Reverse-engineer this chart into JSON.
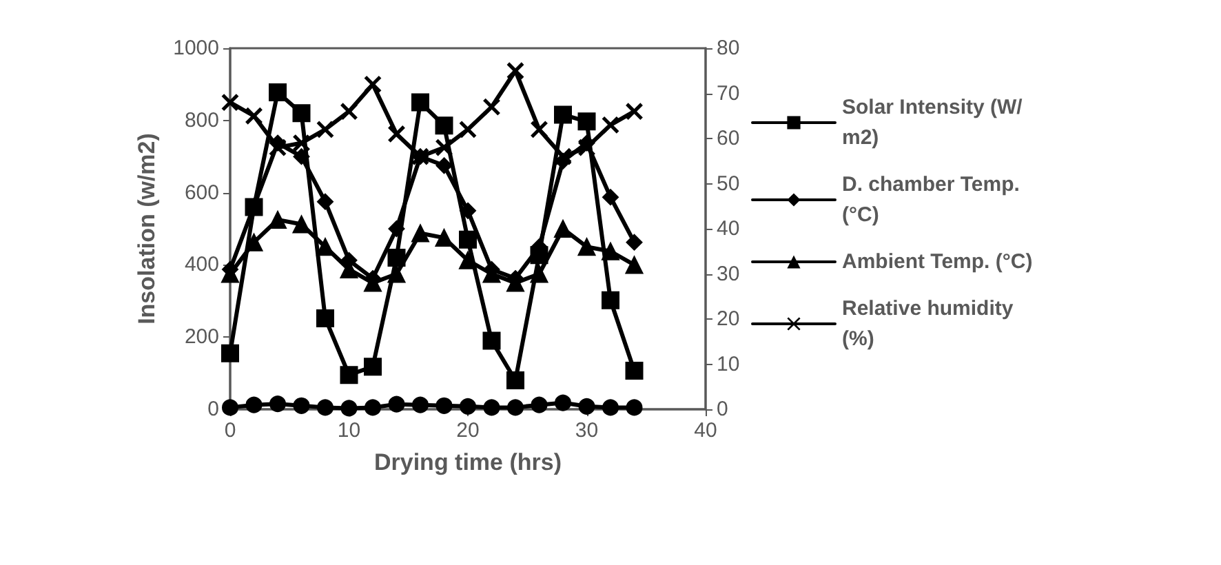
{
  "chart_data": {
    "type": "line",
    "xlabel": "Drying time (hrs)",
    "ylabel": "Insolation (w/m2)",
    "x": [
      0,
      2,
      4,
      6,
      8,
      10,
      12,
      14,
      16,
      18,
      20,
      22,
      24,
      26,
      28,
      30,
      32,
      34
    ],
    "xlim": [
      0,
      40
    ],
    "xticks": [
      0,
      10,
      20,
      30,
      40
    ],
    "ylim": [
      0,
      1000
    ],
    "yticks": [
      0,
      200,
      400,
      600,
      800,
      1000
    ],
    "y2lim": [
      0,
      80
    ],
    "y2ticks": [
      0,
      10,
      20,
      30,
      40,
      50,
      60,
      70,
      80
    ],
    "grid": false,
    "legend": "right",
    "line_style": "solid",
    "series": [
      {
        "name": "Solar Intensity (W/m2)",
        "color": "#000000",
        "marker": "square",
        "values": [
          155,
          560,
          878,
          820,
          252,
          95,
          118,
          420,
          850,
          786,
          470,
          190,
          80,
          427,
          816,
          797,
          302,
          107
        ]
      },
      {
        "name": "D. chamber Temp. (°C)",
        "color": "#000000",
        "marker": "diamond",
        "axis": "y2",
        "values": [
          31,
          45,
          59,
          56,
          46,
          33,
          29,
          40,
          56,
          54,
          44,
          31,
          29,
          36,
          55,
          59,
          47,
          37
        ]
      },
      {
        "name": "Ambient Temp. (°C)",
        "color": "#000000",
        "marker": "triangle",
        "axis": "y2",
        "values": [
          30,
          37,
          42,
          41,
          36,
          31,
          28,
          30,
          39,
          38,
          33,
          30,
          28,
          30,
          40,
          36,
          35,
          32
        ]
      },
      {
        "name": "Relative humidity (%)",
        "color": "#000000",
        "marker": "cross",
        "axis": "y2",
        "values": [
          68,
          65,
          58,
          59,
          62,
          66,
          72,
          61,
          56,
          58,
          62,
          67,
          75,
          62,
          56,
          58,
          63,
          66
        ]
      },
      {
        "color": "#000000",
        "marker": "circle",
        "values": [
          5,
          12,
          15,
          10,
          5,
          3,
          5,
          14,
          12,
          10,
          8,
          5,
          5,
          12,
          18,
          8,
          5,
          5
        ]
      }
    ]
  }
}
